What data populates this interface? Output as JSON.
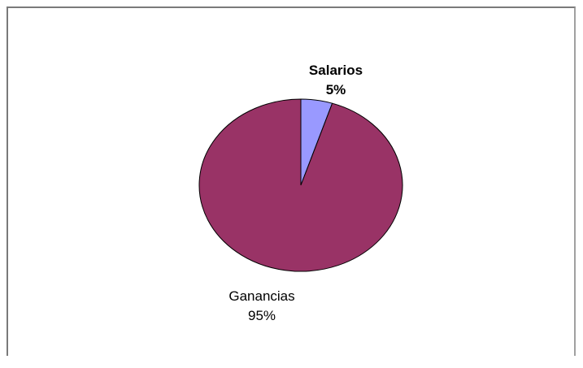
{
  "chart_data": {
    "type": "pie",
    "title": "",
    "slices": [
      {
        "label": "Salarios",
        "value": 5,
        "percent_label": "5%",
        "color": "#9999ff"
      },
      {
        "label": "Ganancias",
        "value": 95,
        "percent_label": "95%",
        "color": "#993366"
      }
    ],
    "legend": "none",
    "outline_color": "#000000"
  }
}
